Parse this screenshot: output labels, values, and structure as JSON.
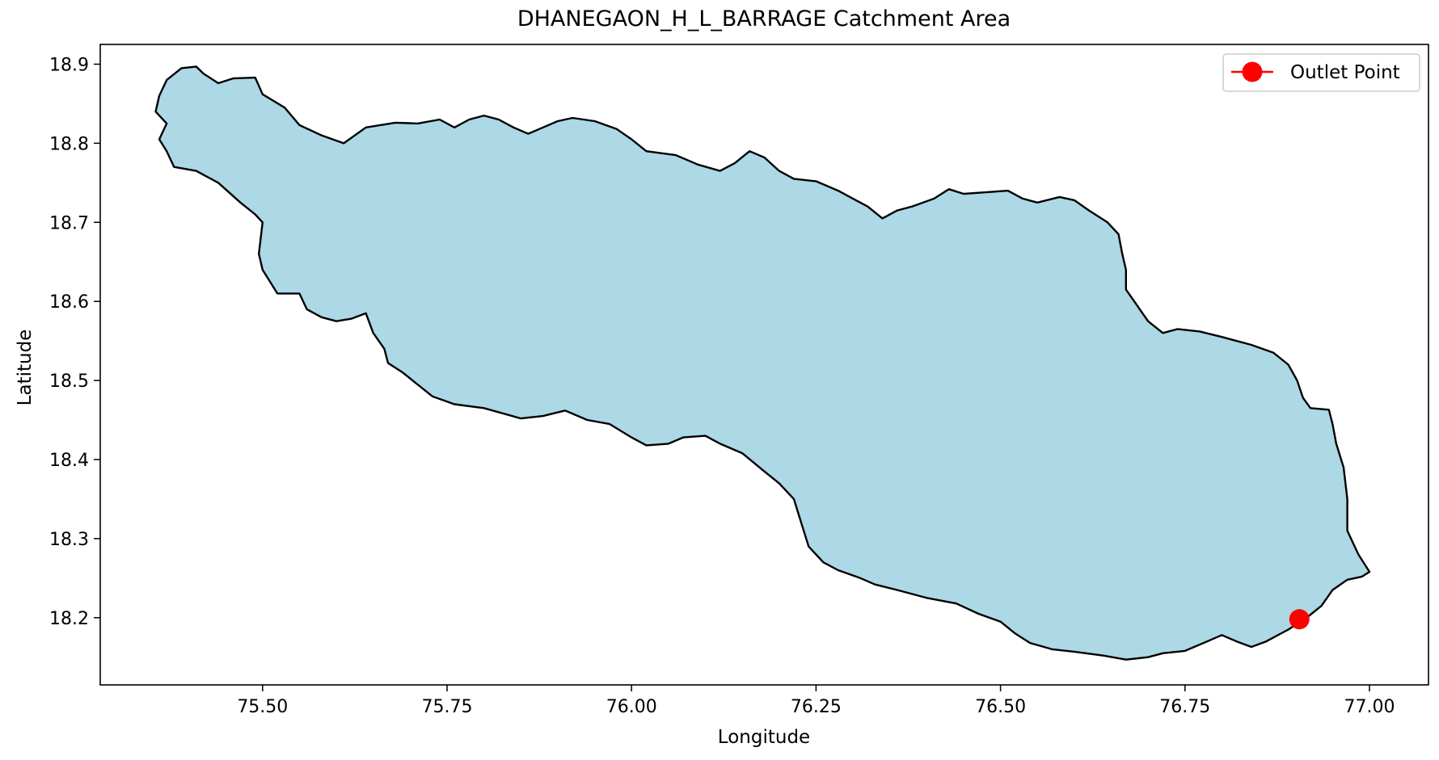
{
  "chart_data": {
    "type": "map",
    "title": "DHANEGAON_H_L_BARRAGE Catchment Area",
    "xlabel": "Longitude",
    "ylabel": "Latitude",
    "xlim": [
      75.28,
      77.08
    ],
    "ylim": [
      18.115,
      18.925
    ],
    "x_ticks": [
      75.5,
      75.75,
      76.0,
      76.25,
      76.5,
      76.75,
      77.0
    ],
    "x_tick_labels": [
      "75.50",
      "75.75",
      "76.00",
      "76.25",
      "76.50",
      "76.75",
      "77.00"
    ],
    "y_ticks": [
      18.2,
      18.3,
      18.4,
      18.5,
      18.6,
      18.7,
      18.8,
      18.9
    ],
    "y_tick_labels": [
      "18.2",
      "18.3",
      "18.4",
      "18.5",
      "18.6",
      "18.7",
      "18.8",
      "18.9"
    ],
    "grid": false,
    "legend": {
      "position": "top-right",
      "entries": [
        {
          "label": "Outlet Point",
          "color": "#ff0000",
          "marker": "circle"
        }
      ]
    },
    "catchment": {
      "fill": "#add8e6",
      "edge": "#000000",
      "boundary": [
        [
          75.36,
          18.86
        ],
        [
          75.37,
          18.88
        ],
        [
          75.39,
          18.895
        ],
        [
          75.41,
          18.897
        ],
        [
          75.42,
          18.888
        ],
        [
          75.44,
          18.876
        ],
        [
          75.46,
          18.882
        ],
        [
          75.49,
          18.883
        ],
        [
          75.5,
          18.862
        ],
        [
          75.53,
          18.845
        ],
        [
          75.55,
          18.823
        ],
        [
          75.58,
          18.81
        ],
        [
          75.61,
          18.8
        ],
        [
          75.64,
          18.82
        ],
        [
          75.68,
          18.826
        ],
        [
          75.71,
          18.825
        ],
        [
          75.74,
          18.83
        ],
        [
          75.76,
          18.82
        ],
        [
          75.78,
          18.83
        ],
        [
          75.8,
          18.835
        ],
        [
          75.82,
          18.83
        ],
        [
          75.84,
          18.82
        ],
        [
          75.86,
          18.812
        ],
        [
          75.88,
          18.82
        ],
        [
          75.9,
          18.828
        ],
        [
          75.92,
          18.832
        ],
        [
          75.95,
          18.828
        ],
        [
          75.98,
          18.818
        ],
        [
          76.0,
          18.805
        ],
        [
          76.02,
          18.79
        ],
        [
          76.06,
          18.785
        ],
        [
          76.09,
          18.773
        ],
        [
          76.12,
          18.765
        ],
        [
          76.14,
          18.775
        ],
        [
          76.16,
          18.79
        ],
        [
          76.18,
          18.782
        ],
        [
          76.2,
          18.765
        ],
        [
          76.22,
          18.755
        ],
        [
          76.25,
          18.752
        ],
        [
          76.28,
          18.74
        ],
        [
          76.3,
          18.73
        ],
        [
          76.32,
          18.72
        ],
        [
          76.34,
          18.705
        ],
        [
          76.36,
          18.715
        ],
        [
          76.38,
          18.72
        ],
        [
          76.41,
          18.73
        ],
        [
          76.43,
          18.742
        ],
        [
          76.45,
          18.736
        ],
        [
          76.48,
          18.738
        ],
        [
          76.51,
          18.74
        ],
        [
          76.53,
          18.73
        ],
        [
          76.55,
          18.725
        ],
        [
          76.58,
          18.732
        ],
        [
          76.6,
          18.728
        ],
        [
          76.62,
          18.715
        ],
        [
          76.645,
          18.7
        ],
        [
          76.66,
          18.685
        ],
        [
          76.665,
          18.66
        ],
        [
          76.67,
          18.64
        ],
        [
          76.67,
          18.615
        ],
        [
          76.685,
          18.595
        ],
        [
          76.7,
          18.575
        ],
        [
          76.72,
          18.56
        ],
        [
          76.74,
          18.565
        ],
        [
          76.77,
          18.562
        ],
        [
          76.8,
          18.555
        ],
        [
          76.84,
          18.545
        ],
        [
          76.87,
          18.535
        ],
        [
          76.89,
          18.52
        ],
        [
          76.902,
          18.5
        ],
        [
          76.91,
          18.478
        ],
        [
          76.92,
          18.465
        ],
        [
          76.945,
          18.463
        ],
        [
          76.95,
          18.445
        ],
        [
          76.955,
          18.42
        ],
        [
          76.965,
          18.39
        ],
        [
          76.97,
          18.35
        ],
        [
          76.97,
          18.31
        ],
        [
          76.985,
          18.28
        ],
        [
          77.0,
          18.258
        ],
        [
          76.99,
          18.252
        ],
        [
          76.97,
          18.248
        ],
        [
          76.95,
          18.235
        ],
        [
          76.935,
          18.215
        ],
        [
          76.915,
          18.2
        ],
        [
          76.89,
          18.185
        ],
        [
          76.86,
          18.17
        ],
        [
          76.84,
          18.163
        ],
        [
          76.82,
          18.17
        ],
        [
          76.8,
          18.178
        ],
        [
          76.78,
          18.17
        ],
        [
          76.75,
          18.158
        ],
        [
          76.72,
          18.155
        ],
        [
          76.7,
          18.15
        ],
        [
          76.67,
          18.147
        ],
        [
          76.64,
          18.152
        ],
        [
          76.6,
          18.157
        ],
        [
          76.57,
          18.16
        ],
        [
          76.54,
          18.168
        ],
        [
          76.52,
          18.18
        ],
        [
          76.5,
          18.195
        ],
        [
          76.47,
          18.205
        ],
        [
          76.44,
          18.218
        ],
        [
          76.4,
          18.225
        ],
        [
          76.36,
          18.235
        ],
        [
          76.33,
          18.242
        ],
        [
          76.31,
          18.25
        ],
        [
          76.28,
          18.26
        ],
        [
          76.26,
          18.27
        ],
        [
          76.24,
          18.29
        ],
        [
          76.23,
          18.32
        ],
        [
          76.22,
          18.35
        ],
        [
          76.2,
          18.37
        ],
        [
          76.18,
          18.385
        ],
        [
          76.15,
          18.408
        ],
        [
          76.12,
          18.42
        ],
        [
          76.1,
          18.43
        ],
        [
          76.07,
          18.428
        ],
        [
          76.05,
          18.42
        ],
        [
          76.02,
          18.418
        ],
        [
          76.0,
          18.428
        ],
        [
          75.97,
          18.445
        ],
        [
          75.94,
          18.45
        ],
        [
          75.91,
          18.462
        ],
        [
          75.88,
          18.455
        ],
        [
          75.85,
          18.452
        ],
        [
          75.8,
          18.465
        ],
        [
          75.76,
          18.47
        ],
        [
          75.73,
          18.48
        ],
        [
          75.71,
          18.495
        ],
        [
          75.69,
          18.51
        ],
        [
          75.67,
          18.522
        ],
        [
          75.665,
          18.54
        ],
        [
          75.65,
          18.56
        ],
        [
          75.64,
          18.585
        ],
        [
          75.62,
          18.578
        ],
        [
          75.6,
          18.575
        ],
        [
          75.58,
          18.58
        ],
        [
          75.56,
          18.59
        ],
        [
          75.55,
          18.61
        ],
        [
          75.52,
          18.61
        ],
        [
          75.5,
          18.64
        ],
        [
          75.495,
          18.66
        ],
        [
          75.5,
          18.7
        ],
        [
          75.49,
          18.71
        ],
        [
          75.47,
          18.725
        ],
        [
          75.44,
          18.75
        ],
        [
          75.41,
          18.765
        ],
        [
          75.38,
          18.77
        ],
        [
          75.37,
          18.79
        ],
        [
          75.36,
          18.805
        ],
        [
          75.37,
          18.825
        ],
        [
          75.355,
          18.84
        ]
      ]
    },
    "outlet_point": {
      "x": 76.905,
      "y": 18.198,
      "label": "Outlet Point",
      "color": "#ff0000"
    }
  }
}
